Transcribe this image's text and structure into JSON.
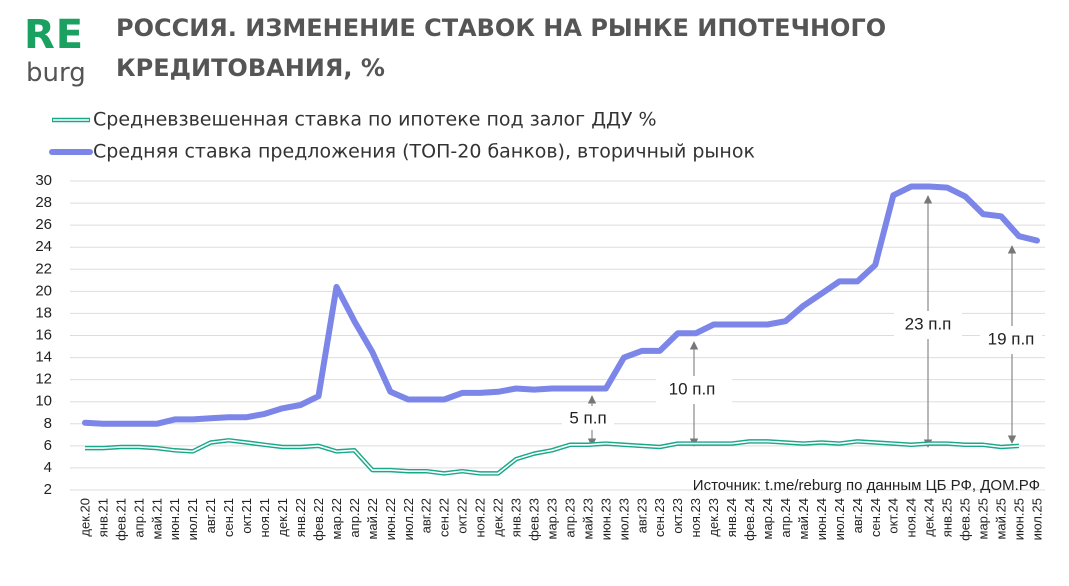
{
  "logo": {
    "top": "RE",
    "bottom": "burg"
  },
  "chart_data": {
    "type": "line",
    "title": "РОССИЯ. ИЗМЕНЕНИЕ СТАВОК НА РЫНКЕ ИПОТЕЧНОГО КРЕДИТОВАНИЯ, %",
    "categories": [
      "дек.20",
      "янв.21",
      "фев.21",
      "апр.21",
      "май.21",
      "июн.21",
      "июл.21",
      "авг.21",
      "сен.21",
      "окт.21",
      "ноя.21",
      "дек.21",
      "янв.22",
      "фев.22",
      "мар.22",
      "апр.22",
      "май.22",
      "июн.22",
      "июл.22",
      "авг.22",
      "сен.22",
      "окт.22",
      "ноя.22",
      "дек.22",
      "янв.23",
      "фев.23",
      "мар.23",
      "апр.23",
      "май.23",
      "июн.23",
      "июл.23",
      "авг.23",
      "сен.23",
      "окт.23",
      "ноя.23",
      "дек.23",
      "янв.24",
      "фев.24",
      "мар.24",
      "апр.24",
      "май.24",
      "июн.24",
      "июл.24",
      "авг.24",
      "сен.24",
      "окт.24",
      "ноя.24",
      "дек.24",
      "янв.25",
      "фев.25",
      "мар.25",
      "май.25",
      "июн.25",
      "июл.25"
    ],
    "series": [
      {
        "name": "Средневзвешенная ставка по ипотеке под залог ДДУ %",
        "color": "#1aa88a",
        "style": "double",
        "values": [
          5.8,
          5.8,
          5.9,
          5.9,
          5.8,
          5.6,
          5.5,
          6.3,
          6.5,
          6.3,
          6.1,
          5.9,
          5.9,
          6.0,
          5.5,
          5.6,
          3.8,
          3.8,
          3.7,
          3.7,
          3.5,
          3.7,
          3.5,
          3.5,
          4.8,
          5.3,
          5.6,
          6.1,
          6.1,
          6.2,
          6.1,
          6.0,
          5.9,
          6.2,
          6.2,
          6.2,
          6.2,
          6.4,
          6.4,
          6.3,
          6.2,
          6.3,
          6.2,
          6.4,
          6.3,
          6.2,
          6.1,
          6.2,
          6.2,
          6.1,
          6.1,
          5.9,
          6.0,
          null
        ]
      },
      {
        "name": "Средняя ставка предложения (ТОП-20 банков), вторичный рынок",
        "color": "#7b86e8",
        "style": "thick",
        "values": [
          8.1,
          8.0,
          8.0,
          8.0,
          8.0,
          8.4,
          8.4,
          8.5,
          8.6,
          8.6,
          8.9,
          9.4,
          9.7,
          10.5,
          20.4,
          17.3,
          14.5,
          10.9,
          10.2,
          10.2,
          10.2,
          10.8,
          10.8,
          10.9,
          11.2,
          11.1,
          11.2,
          11.2,
          11.2,
          11.2,
          14.0,
          14.6,
          14.6,
          16.2,
          16.2,
          17.0,
          17.0,
          17.0,
          17.0,
          17.3,
          18.7,
          19.8,
          20.9,
          20.9,
          22.4,
          28.7,
          29.5,
          29.5,
          29.4,
          28.6,
          27.0,
          26.8,
          25.0,
          24.6
        ]
      }
    ],
    "ylim": [
      2,
      30
    ],
    "yticks": [
      2,
      4,
      6,
      8,
      10,
      12,
      14,
      16,
      18,
      20,
      22,
      24,
      26,
      28,
      30
    ],
    "grid": true,
    "annotations": [
      "5 п.п",
      "10 п.п",
      "23 п.п",
      "19 п.п"
    ],
    "source": "Источник: t.me/reburg по данным ЦБ РФ, ДОМ.РФ"
  }
}
